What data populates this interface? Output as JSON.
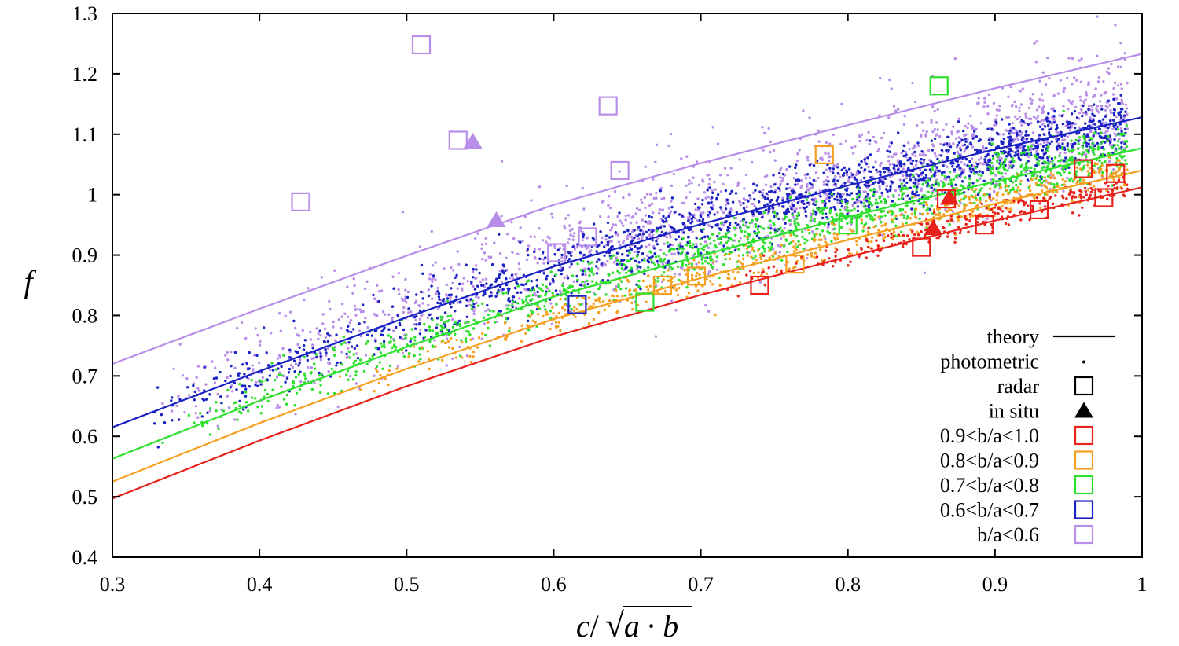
{
  "chart_data": {
    "type": "scatter",
    "xlabel": "c/ √a · b",
    "xlabel_parts": {
      "c": "c",
      "slash": "/",
      "radical": "√",
      "a": "a",
      "dot": "·",
      "b": "b"
    },
    "ylabel": "f",
    "xlim": [
      0.3,
      1.0
    ],
    "ylim": [
      0.4,
      1.3
    ],
    "x_ticks": [
      0.3,
      0.4,
      0.5,
      0.6,
      0.7,
      0.8,
      0.9,
      1.0
    ],
    "x_tick_labels": [
      "0.3",
      "0.4",
      "0.5",
      "0.6",
      "0.7",
      "0.8",
      "0.9",
      "1"
    ],
    "y_ticks": [
      0.4,
      0.5,
      0.6,
      0.7,
      0.8,
      0.9,
      1.0,
      1.1,
      1.2,
      1.3
    ],
    "y_tick_labels": [
      "0.4",
      "0.5",
      "0.6",
      "0.7",
      "0.8",
      "0.9",
      "1",
      "1.1",
      "1.2",
      "1.3"
    ],
    "grid": false,
    "legend_position": "bottom-right",
    "legend": [
      {
        "label": "theory",
        "marker": "line",
        "color": "#000000"
      },
      {
        "label": "photometric",
        "marker": "dot",
        "color": "#000000"
      },
      {
        "label": "radar",
        "marker": "open-square",
        "color": "#000000"
      },
      {
        "label": "in situ",
        "marker": "filled-triangle",
        "color": "#000000"
      },
      {
        "label": "0.9<b/a<1.0",
        "marker": "open-square",
        "color": "#e8211a"
      },
      {
        "label": "0.8<b/a<0.9",
        "marker": "open-square",
        "color": "#f5a021"
      },
      {
        "label": "0.7<b/a<0.8",
        "marker": "open-square",
        "color": "#2ee02e"
      },
      {
        "label": "0.6<b/a<0.7",
        "marker": "open-square",
        "color": "#1a22c4"
      },
      {
        "label": "b/a<0.6",
        "marker": "open-square",
        "color": "#b98ee8"
      }
    ],
    "theory_curves": [
      {
        "group": "b/a<0.6",
        "color": "#b98ee8",
        "x": [
          0.3,
          0.4,
          0.5,
          0.6,
          0.7,
          0.8,
          0.9,
          1.0
        ],
        "y": [
          0.72,
          0.811,
          0.899,
          0.983,
          1.052,
          1.115,
          1.176,
          1.233
        ]
      },
      {
        "group": "0.6<b/a<0.7",
        "color": "#1a22c4",
        "x": [
          0.3,
          0.4,
          0.5,
          0.6,
          0.7,
          0.8,
          0.9,
          1.0
        ],
        "y": [
          0.615,
          0.708,
          0.797,
          0.881,
          0.951,
          1.015,
          1.075,
          1.128
        ]
      },
      {
        "group": "0.7<b/a<0.8",
        "color": "#2ee02e",
        "x": [
          0.3,
          0.4,
          0.5,
          0.6,
          0.7,
          0.8,
          0.9,
          1.0
        ],
        "y": [
          0.563,
          0.659,
          0.748,
          0.831,
          0.899,
          0.963,
          1.022,
          1.077
        ]
      },
      {
        "group": "0.8<b/a<0.9",
        "color": "#f5a021",
        "x": [
          0.3,
          0.4,
          0.5,
          0.6,
          0.7,
          0.8,
          0.9,
          1.0
        ],
        "y": [
          0.525,
          0.622,
          0.712,
          0.794,
          0.862,
          0.925,
          0.985,
          1.04
        ]
      },
      {
        "group": "0.9<b/a<1.0",
        "color": "#e8211a",
        "x": [
          0.3,
          0.4,
          0.5,
          0.6,
          0.7,
          0.8,
          0.9,
          1.0
        ],
        "y": [
          0.497,
          0.593,
          0.683,
          0.765,
          0.834,
          0.897,
          0.957,
          1.012
        ]
      }
    ],
    "radar_points": [
      {
        "group": "b/a<0.6",
        "color": "#b98ee8",
        "points": [
          [
            0.51,
            1.248
          ],
          [
            0.428,
            0.988
          ],
          [
            0.535,
            1.09
          ],
          [
            0.637,
            1.147
          ],
          [
            0.645,
            1.04
          ],
          [
            0.623,
            0.93
          ],
          [
            0.602,
            0.904
          ]
        ]
      },
      {
        "group": "0.6<b/a<0.7",
        "color": "#1a22c4",
        "points": [
          [
            0.616,
            0.818
          ]
        ]
      },
      {
        "group": "0.7<b/a<0.8",
        "color": "#2ee02e",
        "points": [
          [
            0.662,
            0.822
          ],
          [
            0.8,
            0.95
          ],
          [
            0.862,
            1.18
          ]
        ]
      },
      {
        "group": "0.8<b/a<0.9",
        "color": "#f5a021",
        "points": [
          [
            0.674,
            0.85
          ],
          [
            0.697,
            0.865
          ],
          [
            0.764,
            0.885
          ],
          [
            0.784,
            1.066
          ]
        ]
      },
      {
        "group": "0.9<b/a<1.0",
        "color": "#e8211a",
        "points": [
          [
            0.74,
            0.85
          ],
          [
            0.85,
            0.913
          ],
          [
            0.867,
            0.993
          ],
          [
            0.893,
            0.95
          ],
          [
            0.93,
            0.975
          ],
          [
            0.96,
            1.043
          ],
          [
            0.974,
            0.995
          ],
          [
            0.982,
            1.035
          ]
        ]
      }
    ],
    "in_situ_points": [
      {
        "group": "b/a<0.6",
        "color": "#b98ee8",
        "points": [
          [
            0.545,
            1.088
          ],
          [
            0.561,
            0.958
          ]
        ]
      },
      {
        "group": "0.9<b/a<1.0",
        "color": "#e8211a",
        "points": [
          [
            0.858,
            0.945
          ],
          [
            0.869,
            0.995
          ]
        ]
      }
    ],
    "photometric_clouds": [
      {
        "group": "b/a<0.6",
        "color": "#b98ee8",
        "count": 1800,
        "x_range": [
          0.32,
          0.99
        ],
        "offset_from_theory": {
          "group": "0.6<b/a<0.7",
          "mean": 0.005,
          "spread": 0.045
        }
      },
      {
        "group": "0.6<b/a<0.7",
        "color": "#1a22c4",
        "count": 1500,
        "x_range": [
          0.32,
          0.99
        ],
        "offset_from_theory": {
          "group": "0.6<b/a<0.7",
          "mean": -0.005,
          "spread": 0.025
        }
      },
      {
        "group": "0.7<b/a<0.8",
        "color": "#2ee02e",
        "count": 1200,
        "x_range": [
          0.33,
          0.99
        ],
        "offset_from_theory": {
          "group": "0.7<b/a<0.8",
          "mean": 0.005,
          "spread": 0.02
        }
      },
      {
        "group": "0.8<b/a<0.9",
        "color": "#f5a021",
        "count": 600,
        "x_range": [
          0.45,
          0.99
        ],
        "offset_from_theory": {
          "group": "0.8<b/a<0.9",
          "mean": 0.005,
          "spread": 0.015
        }
      },
      {
        "group": "0.9<b/a<1.0",
        "color": "#e8211a",
        "count": 250,
        "x_range": [
          0.7,
          0.99
        ],
        "offset_from_theory": {
          "group": "0.9<b/a<1.0",
          "mean": 0.008,
          "spread": 0.012
        }
      }
    ]
  }
}
